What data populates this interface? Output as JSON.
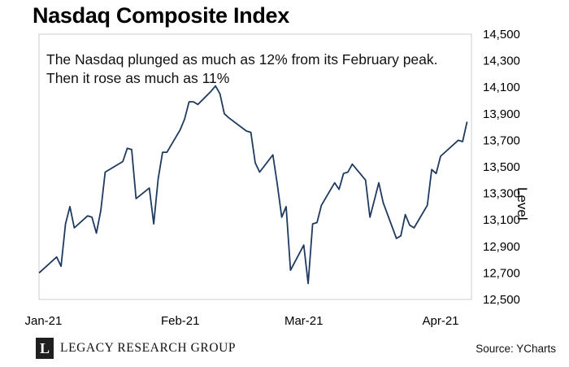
{
  "header": {
    "title": "Nasdaq Composite Index",
    "annotation": "The Nasdaq plunged as much as 12% from its February peak. Then it rose as much as 11%"
  },
  "footer": {
    "brand_mark": "L",
    "brand_name": "LEGACY RESEARCH GROUP",
    "source": "Source: YCharts"
  },
  "colors": {
    "line": "#1f3a5f",
    "frame": "#cccccc"
  },
  "chart_data": {
    "type": "line",
    "title": "Nasdaq Composite Index",
    "xlabel": "",
    "ylabel": "Level",
    "y_axis_position": "right",
    "ylim": [
      12500,
      14500
    ],
    "yticks": [
      12500,
      12700,
      12900,
      13100,
      13300,
      13500,
      13700,
      13900,
      14100,
      14300,
      14500
    ],
    "ytick_labels": [
      "12,500",
      "12,700",
      "12,900",
      "13,100",
      "13,300",
      "13,500",
      "13,700",
      "13,900",
      "14,100",
      "14,300",
      "14,500"
    ],
    "xlim": [
      "2020-12-31",
      "2021-04-08"
    ],
    "xticks": [
      "2021-01-01",
      "2021-02-01",
      "2021-03-01",
      "2021-04-01"
    ],
    "xtick_labels": [
      "Jan-21",
      "Feb-21",
      "Mar-21",
      "Apr-21"
    ],
    "grid": false,
    "series": [
      {
        "x": [
          "2020-12-31",
          "2021-01-04",
          "2021-01-05",
          "2021-01-06",
          "2021-01-07",
          "2021-01-08",
          "2021-01-11",
          "2021-01-12",
          "2021-01-13",
          "2021-01-14",
          "2021-01-15",
          "2021-01-19",
          "2021-01-20",
          "2021-01-21",
          "2021-01-22",
          "2021-01-25",
          "2021-01-26",
          "2021-01-27",
          "2021-01-28",
          "2021-01-29",
          "2021-02-01",
          "2021-02-02",
          "2021-02-03",
          "2021-02-04",
          "2021-02-05",
          "2021-02-08",
          "2021-02-09",
          "2021-02-10",
          "2021-02-11",
          "2021-02-12",
          "2021-02-16",
          "2021-02-17",
          "2021-02-18",
          "2021-02-19",
          "2021-02-22",
          "2021-02-23",
          "2021-02-24",
          "2021-02-25",
          "2021-02-26",
          "2021-03-01",
          "2021-03-02",
          "2021-03-03",
          "2021-03-04",
          "2021-03-05",
          "2021-03-08",
          "2021-03-09",
          "2021-03-10",
          "2021-03-11",
          "2021-03-12",
          "2021-03-15",
          "2021-03-16",
          "2021-03-17",
          "2021-03-18",
          "2021-03-19",
          "2021-03-22",
          "2021-03-23",
          "2021-03-24",
          "2021-03-25",
          "2021-03-26",
          "2021-03-29",
          "2021-03-30",
          "2021-03-31",
          "2021-04-01",
          "2021-04-05",
          "2021-04-06",
          "2021-04-07"
        ],
        "values": [
          12700,
          12820,
          12750,
          13070,
          13200,
          13040,
          13130,
          13120,
          13000,
          13170,
          13460,
          13540,
          13640,
          13630,
          13260,
          13340,
          13070,
          13410,
          13610,
          13610,
          13780,
          13860,
          13990,
          13990,
          13970,
          14070,
          14110,
          14050,
          13900,
          13870,
          13770,
          13760,
          13530,
          13460,
          13590,
          13370,
          13120,
          13200,
          12720,
          12910,
          12620,
          13070,
          13080,
          13210,
          13380,
          13330,
          13450,
          13460,
          13520,
          13400,
          13120,
          13250,
          13380,
          13230,
          12960,
          12980,
          13140,
          13060,
          13040,
          13210,
          13480,
          13450,
          13580,
          13700,
          13690,
          13840
        ]
      }
    ]
  }
}
